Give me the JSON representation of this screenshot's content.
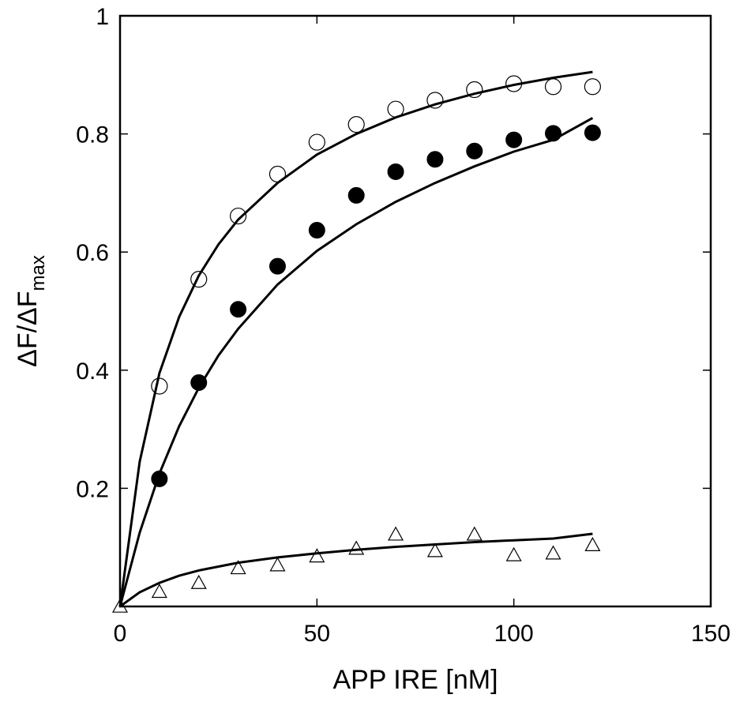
{
  "chart_data": {
    "type": "scatter",
    "title": "",
    "xlabel": "APP IRE [nM]",
    "ylabel": {
      "main": "ΔF/ΔF",
      "subscript": "max"
    },
    "xlim": [
      0,
      150
    ],
    "ylim": [
      0,
      1
    ],
    "x_ticks": [
      0,
      50,
      100,
      150
    ],
    "x_tick_labels": [
      "0",
      "50",
      "100",
      "150"
    ],
    "y_ticks": [
      0.2,
      0.4,
      0.6,
      0.8,
      1
    ],
    "y_tick_labels": [
      "0.2",
      "0.4",
      "0.6",
      "0.8",
      "1"
    ],
    "grid": false,
    "legend": "none",
    "series": [
      {
        "marker": "open-circle",
        "color": "#000000",
        "x": [
          10,
          20,
          30,
          40,
          50,
          60,
          70,
          80,
          90,
          100,
          110,
          120
        ],
        "y": [
          0.373,
          0.554,
          0.661,
          0.732,
          0.786,
          0.816,
          0.842,
          0.857,
          0.875,
          0.885,
          0.88,
          0.88
        ],
        "fit": {
          "x": [
            0,
            5,
            10,
            15,
            20,
            25,
            30,
            40,
            50,
            60,
            70,
            80,
            90,
            100,
            110,
            120
          ],
          "y": [
            0,
            0.245,
            0.395,
            0.49,
            0.56,
            0.613,
            0.655,
            0.717,
            0.765,
            0.8,
            0.828,
            0.85,
            0.868,
            0.883,
            0.895,
            0.905
          ]
        }
      },
      {
        "marker": "filled-circle",
        "color": "#000000",
        "x": [
          10,
          20,
          30,
          40,
          50,
          60,
          70,
          80,
          90,
          100,
          110,
          120
        ],
        "y": [
          0.216,
          0.379,
          0.503,
          0.576,
          0.637,
          0.696,
          0.736,
          0.757,
          0.771,
          0.79,
          0.801,
          0.802
        ],
        "fit": {
          "x": [
            0,
            5,
            10,
            15,
            20,
            25,
            30,
            40,
            50,
            60,
            70,
            80,
            90,
            100,
            110,
            120
          ],
          "y": [
            0,
            0.125,
            0.225,
            0.305,
            0.37,
            0.425,
            0.47,
            0.545,
            0.602,
            0.647,
            0.685,
            0.717,
            0.745,
            0.77,
            0.79,
            0.827
          ]
        }
      },
      {
        "marker": "open-triangle",
        "color": "#000000",
        "x": [
          0,
          10,
          20,
          30,
          40,
          50,
          60,
          70,
          80,
          90,
          100,
          110,
          120
        ],
        "y": [
          0.0,
          0.025,
          0.04,
          0.065,
          0.07,
          0.085,
          0.098,
          0.122,
          0.094,
          0.122,
          0.087,
          0.09,
          0.104
        ],
        "fit": {
          "x": [
            0,
            5,
            10,
            15,
            20,
            30,
            40,
            50,
            60,
            70,
            80,
            90,
            100,
            110,
            120
          ],
          "y": [
            0,
            0.024,
            0.04,
            0.052,
            0.061,
            0.074,
            0.083,
            0.09,
            0.096,
            0.101,
            0.105,
            0.109,
            0.112,
            0.115,
            0.123
          ]
        }
      }
    ]
  }
}
